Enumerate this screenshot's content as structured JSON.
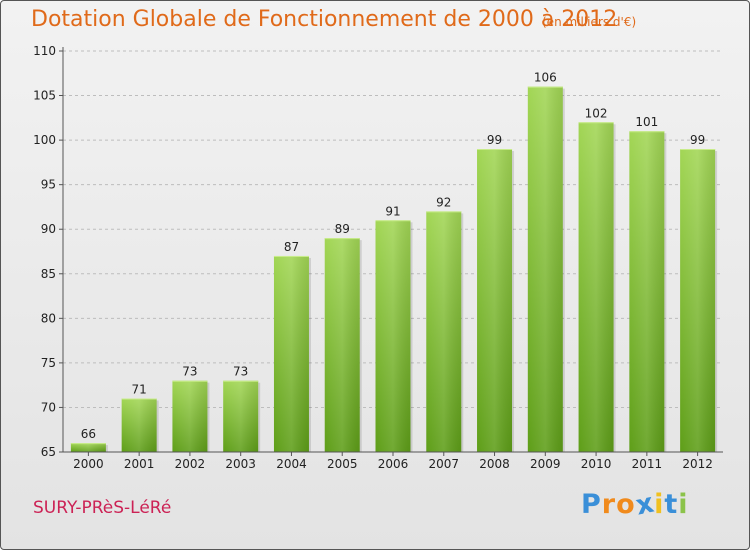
{
  "chart_data": {
    "type": "bar",
    "title": "Dotation Globale de Fonctionnement de 2000 à 2012",
    "subtitle": "(en milliers d'€)",
    "xlabel": "",
    "ylabel": "",
    "categories": [
      "2000",
      "2001",
      "2002",
      "2003",
      "2004",
      "2005",
      "2006",
      "2007",
      "2008",
      "2009",
      "2010",
      "2011",
      "2012"
    ],
    "values": [
      66,
      71,
      73,
      73,
      87,
      89,
      91,
      92,
      99,
      106,
      102,
      101,
      99
    ],
    "ylim": [
      65,
      110
    ],
    "yticks": [
      65,
      70,
      75,
      80,
      85,
      90,
      95,
      100,
      105,
      110
    ],
    "grid": "horizontal",
    "bar_color": "#7cbf2e"
  },
  "commune": "SURY-PRèS-LéRé",
  "brand": {
    "letters": [
      "P",
      "r",
      "o",
      "x",
      "i",
      "t",
      "i"
    ],
    "colors": [
      "#3a8fd8",
      "#f08a1c",
      "#f08a1c",
      "#3a8fd8",
      "#f0c020",
      "#3a8fd8",
      "#8bc34a"
    ]
  }
}
